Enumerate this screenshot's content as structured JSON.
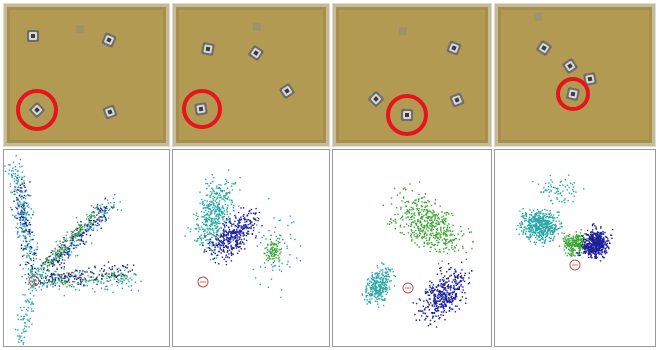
{
  "figure": {
    "columns": 4,
    "rows": [
      "arena-photo",
      "particle-cloud"
    ],
    "colors": {
      "floor": "#b29a52",
      "floor_dark": "#8e7a3c",
      "wall": "#e2dccb",
      "highlight_ring": "#e8141c",
      "robot_body": "#6c6c6c",
      "robot_top": "#d9d9d9",
      "cyan": "#2aa8a8",
      "blue": "#1c1f9a",
      "green": "#3aa632",
      "marker": "#c0504d"
    },
    "panels": [
      {
        "column": 1,
        "robots": 4,
        "highlighted": 1,
        "cloud_shape": "radial-streaks"
      },
      {
        "column": 2,
        "robots": 4,
        "highlighted": 1,
        "cloud_shape": "three-clusters"
      },
      {
        "column": 3,
        "robots": 4,
        "highlighted": 1,
        "cloud_shape": "separated-clusters"
      },
      {
        "column": 4,
        "robots": 4,
        "highlighted": 1,
        "cloud_shape": "tight-clusters"
      }
    ]
  }
}
